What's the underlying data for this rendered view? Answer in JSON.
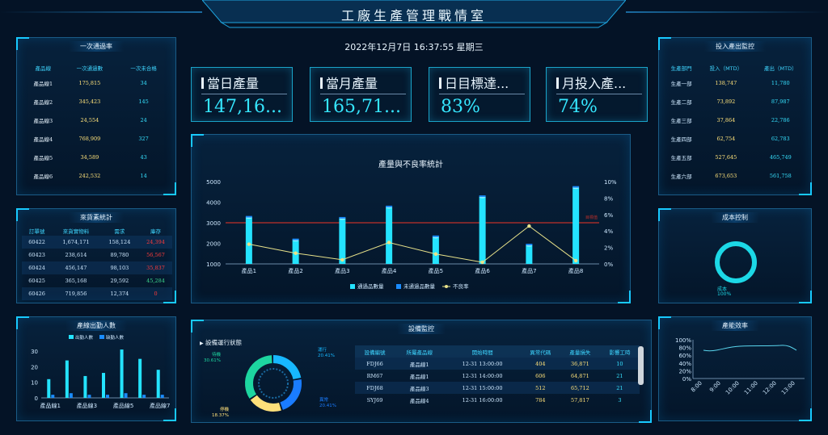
{
  "header": {
    "title": "工廠生產管理戰情室",
    "datetime": "2022年12月7日 16:37:55 星期三"
  },
  "kpis": [
    {
      "label": "當日產量",
      "value": "147,16..."
    },
    {
      "label": "當月產量",
      "value": "165,71..."
    },
    {
      "label": "日目標達...",
      "value": "83%"
    },
    {
      "label": "月投入產...",
      "value": "74%"
    }
  ],
  "pass_rate": {
    "title": "一次通過率",
    "columns": [
      "產品線",
      "一次通過數",
      "一次未合格"
    ],
    "rows": [
      [
        "產品線1",
        "175,815",
        "34"
      ],
      [
        "產品線2",
        "345,423",
        "145"
      ],
      [
        "產品線3",
        "24,554",
        "24"
      ],
      [
        "產品線4",
        "768,909",
        "327"
      ],
      [
        "產品線5",
        "34,589",
        "43"
      ],
      [
        "產品線6",
        "242,532",
        "14"
      ]
    ]
  },
  "materials": {
    "title": "來貨素統計",
    "columns": [
      "訂單號",
      "來貨實物料",
      "需求",
      "庫存"
    ],
    "rows": [
      [
        "60422",
        "1,674,171",
        "158,124",
        "24,394"
      ],
      [
        "60423",
        "238,614",
        "89,780",
        "56,567"
      ],
      [
        "60424",
        "456,147",
        "98,103",
        "35,837"
      ],
      [
        "60425",
        "365,168",
        "29,592",
        "45,284"
      ],
      [
        "60426",
        "719,856",
        "12,374",
        "0"
      ]
    ],
    "stock_colors": [
      "#ff3b3b",
      "#ff3b3b",
      "#ff3b3b",
      "#3dd68c",
      "#ff3b3b"
    ]
  },
  "attendance": {
    "title": "產線出勤人數",
    "legend": [
      "出勤人數",
      "缺勤人數"
    ],
    "categories": [
      "產品線1",
      "產品線2",
      "產品線3",
      "產品線4",
      "產品線5",
      "產品線6",
      "產品線7"
    ],
    "tick_labels": [
      "產品線1",
      "產品線3",
      "產品線5",
      "產品線7"
    ],
    "present": [
      12,
      24,
      14,
      16,
      31,
      25,
      18
    ],
    "absent": [
      2,
      3,
      2,
      2,
      3,
      2,
      2
    ],
    "yticks": [
      "0",
      "10",
      "20",
      "30"
    ]
  },
  "io_monitor": {
    "title": "投入產出監控",
    "columns": [
      "生產部門",
      "投入（MTD）",
      "產出（MTD）"
    ],
    "rows": [
      [
        "生產一部",
        "138,747",
        "11,780"
      ],
      [
        "生產二部",
        "73,892",
        "87,987"
      ],
      [
        "生產三部",
        "37,864",
        "22,786"
      ],
      [
        "生產四部",
        "62,754",
        "62,783"
      ],
      [
        "生產五部",
        "527,645",
        "465,749"
      ],
      [
        "生產六部",
        "673,653",
        "561,758"
      ]
    ]
  },
  "cost": {
    "title": "成本控制",
    "label": "成本",
    "value": "100%"
  },
  "efficiency": {
    "title": "產能效率",
    "yticks": [
      "0%",
      "20%",
      "40%",
      "60%",
      "80%",
      "100%"
    ],
    "xticks": [
      "8:00",
      "9:00",
      "10:00",
      "11:00",
      "12:00",
      "13:00"
    ]
  },
  "equipment": {
    "title": "設備監控",
    "donut_title": "設備運行狀態",
    "segments": [
      {
        "name": "運行",
        "pct": "20.41%",
        "color": "#17b8ff"
      },
      {
        "name": "異常",
        "pct": "20.41%",
        "color": "#1a7cff"
      },
      {
        "name": "停機",
        "pct": "18.37%",
        "color": "#ffe07a"
      },
      {
        "name": "待機",
        "pct": "30.61%",
        "color": "#1dd6a0"
      }
    ],
    "columns": [
      "設備編號",
      "所屬產品線",
      "開始時間",
      "異常代碼",
      "產量損失",
      "影響工時"
    ],
    "rows": [
      [
        "FDJ66",
        "產品線1",
        "12-31 13:00:00",
        "404",
        "36,871",
        "10"
      ],
      [
        "RM67",
        "產品線1",
        "12-31 14:00:00",
        "606",
        "64,871",
        "21"
      ],
      [
        "FDJ68",
        "產品線3",
        "12-31 15:00:00",
        "512",
        "65,712",
        "21"
      ],
      [
        "SYJ69",
        "產品線4",
        "12-31 16:00:00",
        "784",
        "57,817",
        "3"
      ]
    ]
  },
  "chart_data": {
    "type": "bar",
    "title": "產量與不良率統計",
    "categories": [
      "產品1",
      "產品2",
      "產品3",
      "產品4",
      "產品5",
      "產品6",
      "產品7",
      "產品8"
    ],
    "series": [
      {
        "name": "通過品數量",
        "values": [
          3250,
          2150,
          3200,
          3750,
          2300,
          4250,
          1900,
          4700
        ],
        "color": "#24e3ff"
      },
      {
        "name": "未通過品數量",
        "values": [
          100,
          80,
          90,
          100,
          70,
          110,
          60,
          120
        ],
        "color": "#1a8cff"
      },
      {
        "name": "不良率",
        "values": [
          2.4,
          1.3,
          0.5,
          2.6,
          1.2,
          0.2,
          4.6,
          0.4
        ],
        "color": "#e8e28a",
        "axis": "right"
      }
    ],
    "yticks": [
      "1000",
      "2000",
      "3000",
      "4000",
      "5000"
    ],
    "ylim": [
      1000,
      5000
    ],
    "y2ticks": [
      "0%",
      "2%",
      "4%",
      "6%",
      "8%",
      "10%"
    ],
    "y2lim": [
      0,
      10
    ],
    "markline": {
      "value": 3000,
      "label": "目標值",
      "color": "#c0302a"
    },
    "legend": "bottom"
  }
}
